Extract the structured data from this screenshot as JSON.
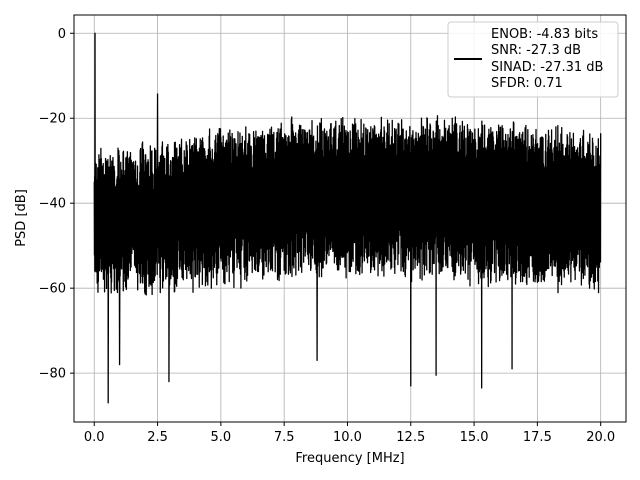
{
  "chart_data": {
    "type": "line",
    "xlabel": "Frequency [MHz]",
    "ylabel": "PSD [dB]",
    "xlim": [
      -0.8,
      21.0
    ],
    "ylim": [
      -91.5,
      4.3
    ],
    "xticks": [
      0.0,
      2.5,
      5.0,
      7.5,
      10.0,
      12.5,
      15.0,
      17.5,
      20.0
    ],
    "xtick_labels": [
      "0.0",
      "2.5",
      "5.0",
      "7.5",
      "10.0",
      "12.5",
      "15.0",
      "17.5",
      "20.0"
    ],
    "yticks": [
      0,
      -20,
      -40,
      -60,
      -80
    ],
    "ytick_labels": [
      "0",
      "−20",
      "−40",
      "−60",
      "−80"
    ],
    "grid": true,
    "legend_position": "top-right",
    "series": [
      {
        "name": "",
        "color": "#000000",
        "description": "dense noisy PSD trace from 0 to 20 MHz",
        "x_range": [
          0.0,
          20.0
        ],
        "envelope_top": [
          [
            0.0,
            -26
          ],
          [
            2.5,
            -25
          ],
          [
            5.0,
            -21.5
          ],
          [
            7.5,
            -19.5
          ],
          [
            10.0,
            -19
          ],
          [
            12.5,
            -19
          ],
          [
            15.0,
            -19.5
          ],
          [
            17.5,
            -20.5
          ],
          [
            20.0,
            -22
          ]
        ],
        "envelope_bottom": [
          [
            0.0,
            -63
          ],
          [
            2.5,
            -62
          ],
          [
            5.0,
            -61
          ],
          [
            7.5,
            -59
          ],
          [
            10.0,
            -58
          ],
          [
            12.5,
            -59
          ],
          [
            15.0,
            -60
          ],
          [
            17.5,
            -61
          ],
          [
            20.0,
            -62
          ]
        ],
        "spikes": [
          {
            "x": 0.03,
            "y": 0
          },
          {
            "x": 2.5,
            "y": -14.3
          }
        ],
        "dips": [
          {
            "x": 0.55,
            "y": -87
          },
          {
            "x": 1.0,
            "y": -78
          },
          {
            "x": 2.95,
            "y": -82
          },
          {
            "x": 8.8,
            "y": -77
          },
          {
            "x": 12.5,
            "y": -83
          },
          {
            "x": 13.5,
            "y": -80.5
          },
          {
            "x": 15.3,
            "y": -83.5
          },
          {
            "x": 16.5,
            "y": -79
          }
        ]
      }
    ],
    "legend": {
      "lines": [
        "ENOB: -4.83 bits",
        "SNR: -27.3 dB",
        "SINAD: -27.31 dB",
        "SFDR: 0.71"
      ]
    }
  }
}
